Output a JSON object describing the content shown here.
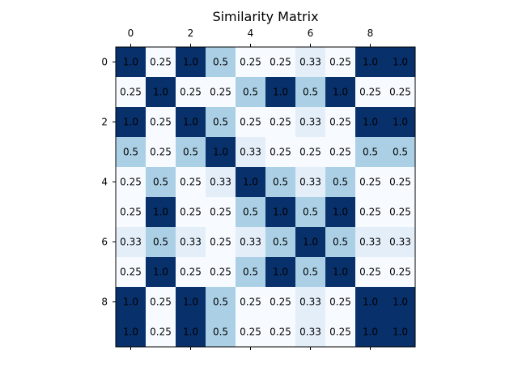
{
  "chart_data": {
    "type": "heatmap",
    "title": "Similarity Matrix",
    "xlabel": "",
    "ylabel": "",
    "x_ticks": [
      0,
      2,
      4,
      6,
      8
    ],
    "y_ticks": [
      0,
      2,
      4,
      6,
      8
    ],
    "n_rows": 10,
    "n_cols": 10,
    "colormap": "Blues",
    "grid": false,
    "values": [
      [
        1.0,
        0.25,
        1.0,
        0.5,
        0.25,
        0.25,
        0.33,
        0.25,
        1.0,
        1.0
      ],
      [
        0.25,
        1.0,
        0.25,
        0.25,
        0.5,
        1.0,
        0.5,
        1.0,
        0.25,
        0.25
      ],
      [
        1.0,
        0.25,
        1.0,
        0.5,
        0.25,
        0.25,
        0.33,
        0.25,
        1.0,
        1.0
      ],
      [
        0.5,
        0.25,
        0.5,
        1.0,
        0.33,
        0.25,
        0.25,
        0.25,
        0.5,
        0.5
      ],
      [
        0.25,
        0.5,
        0.25,
        0.33,
        1.0,
        0.5,
        0.33,
        0.5,
        0.25,
        0.25
      ],
      [
        0.25,
        1.0,
        0.25,
        0.25,
        0.5,
        1.0,
        0.5,
        1.0,
        0.25,
        0.25
      ],
      [
        0.33,
        0.5,
        0.33,
        0.25,
        0.33,
        0.5,
        1.0,
        0.5,
        0.33,
        0.33
      ],
      [
        0.25,
        1.0,
        0.25,
        0.25,
        0.5,
        1.0,
        0.5,
        1.0,
        0.25,
        0.25
      ],
      [
        1.0,
        0.25,
        1.0,
        0.5,
        0.25,
        0.25,
        0.33,
        0.25,
        1.0,
        1.0
      ],
      [
        1.0,
        0.25,
        1.0,
        0.5,
        0.25,
        0.25,
        0.33,
        0.25,
        1.0,
        1.0
      ]
    ],
    "labels": [
      [
        "1.0",
        "0.25",
        "1.0",
        "0.5",
        "0.25",
        "0.25",
        "0.33",
        "0.25",
        "1.0",
        "1.0"
      ],
      [
        "0.25",
        "1.0",
        "0.25",
        "0.25",
        "0.5",
        "1.0",
        "0.5",
        "1.0",
        "0.25",
        "0.25"
      ],
      [
        "1.0",
        "0.25",
        "1.0",
        "0.5",
        "0.25",
        "0.25",
        "0.33",
        "0.25",
        "1.0",
        "1.0"
      ],
      [
        "0.5",
        "0.25",
        "0.5",
        "1.0",
        "0.33",
        "0.25",
        "0.25",
        "0.25",
        "0.5",
        "0.5"
      ],
      [
        "0.25",
        "0.5",
        "0.25",
        "0.33",
        "1.0",
        "0.5",
        "0.33",
        "0.5",
        "0.25",
        "0.25"
      ],
      [
        "0.25",
        "1.0",
        "0.25",
        "0.25",
        "0.5",
        "1.0",
        "0.5",
        "1.0",
        "0.25",
        "0.25"
      ],
      [
        "0.33",
        "0.5",
        "0.33",
        "0.25",
        "0.33",
        "0.5",
        "1.0",
        "0.5",
        "0.33",
        "0.33"
      ],
      [
        "0.25",
        "1.0",
        "0.25",
        "0.25",
        "0.5",
        "1.0",
        "0.5",
        "1.0",
        "0.25",
        "0.25"
      ],
      [
        "1.0",
        "0.25",
        "1.0",
        "0.5",
        "0.25",
        "0.25",
        "0.33",
        "0.25",
        "1.0",
        "1.0"
      ],
      [
        "1.0",
        "0.25",
        "1.0",
        "0.5",
        "0.25",
        "0.25",
        "0.33",
        "0.25",
        "1.0",
        "1.0"
      ]
    ],
    "colors": {
      "1.0": "#08306b",
      "0.5": "#abd0e6",
      "0.33": "#e3eef9",
      "0.25": "#f7fbff"
    }
  }
}
